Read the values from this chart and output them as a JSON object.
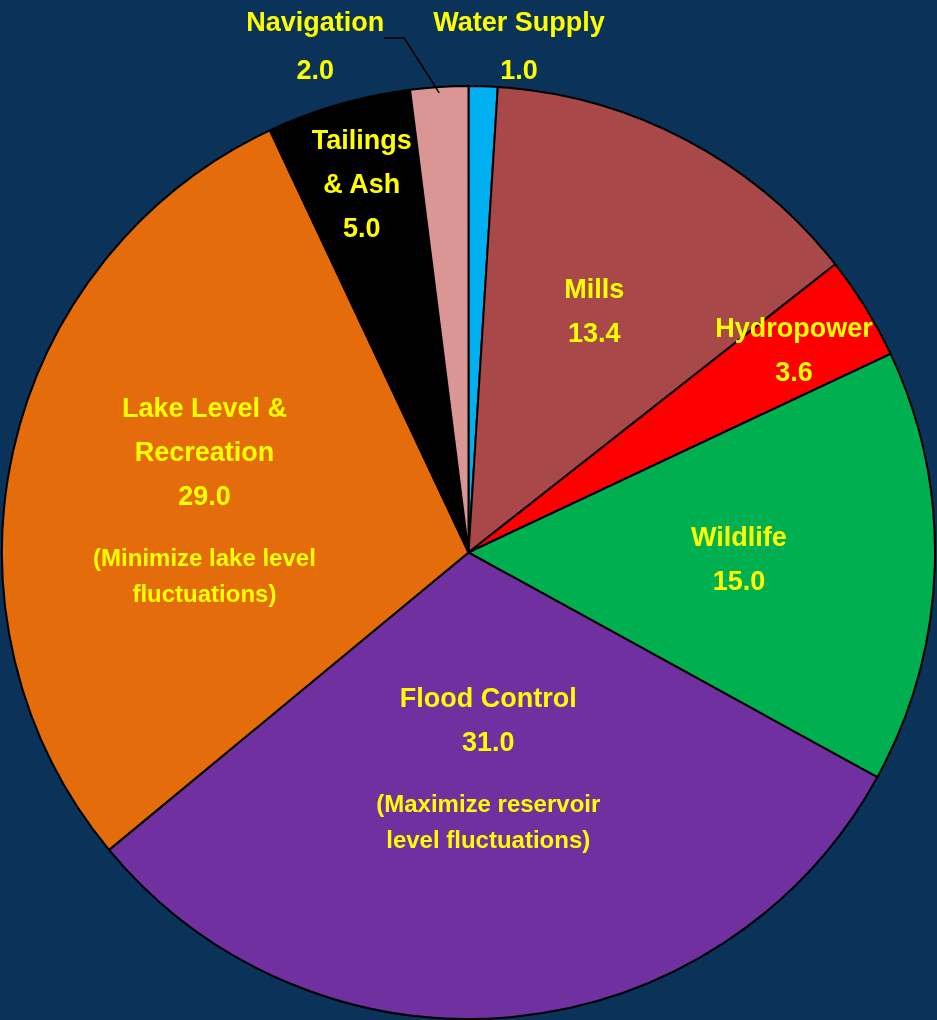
{
  "chart_data": {
    "type": "pie",
    "categories": [
      "Water Supply",
      "Mills",
      "Hydropower",
      "Wildlife",
      "Flood Control",
      "Lake Level & Recreation",
      "Tailings & Ash",
      "Navigation"
    ],
    "values": [
      1.0,
      13.4,
      3.6,
      15.0,
      31.0,
      29.0,
      5.0,
      2.0
    ],
    "value_labels": [
      "1.0",
      "13.4",
      "3.6",
      "15.0",
      "31.0",
      "29.0",
      "5.0",
      "2.0"
    ],
    "colors": [
      "#00b0f0",
      "#a94848",
      "#ff0000",
      "#00b050",
      "#7030a0",
      "#e46c0a",
      "#000000",
      "#d99694"
    ],
    "annotations": [
      {
        "text": "(Maximize reservoir level fluctuations)",
        "x": "Flood Control"
      },
      {
        "text": "(Minimize lake level fluctuations)",
        "x": "Lake Level & Recreation"
      }
    ],
    "legend": false
  }
}
